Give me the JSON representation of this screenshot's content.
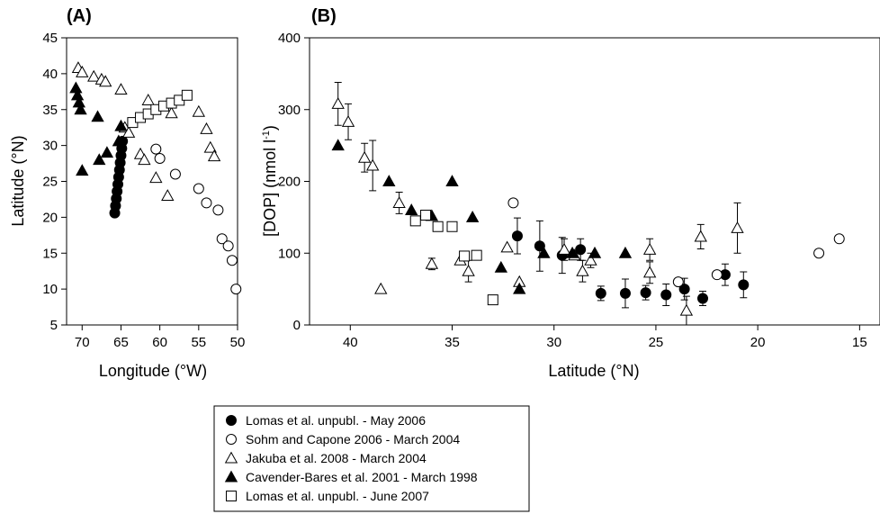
{
  "chart_data": [
    {
      "type": "scatter",
      "panel_label": "(A)",
      "xlabel": "Longitude (°W)",
      "ylabel": "Latitude (°N)",
      "xlim": [
        72,
        50
      ],
      "ylim": [
        5,
        45
      ],
      "x_ticks": [
        70,
        65,
        60,
        55,
        50
      ],
      "y_ticks": [
        5,
        10,
        15,
        20,
        25,
        30,
        35,
        40,
        45
      ],
      "reversed_x": true,
      "series": [
        {
          "key": "s1",
          "marker": "filled-circle",
          "points": [
            [
              65.8,
              20.6
            ],
            [
              65.7,
              21.6
            ],
            [
              65.6,
              22.6
            ],
            [
              65.5,
              23.6
            ],
            [
              65.4,
              24.6
            ],
            [
              65.3,
              25.6
            ],
            [
              65.2,
              26.6
            ],
            [
              65.1,
              27.6
            ],
            [
              65.0,
              28.6
            ],
            [
              64.9,
              29.6
            ],
            [
              64.8,
              30.6
            ]
          ]
        },
        {
          "key": "s2",
          "marker": "open-circle",
          "points": [
            [
              60.5,
              29.5
            ],
            [
              60.0,
              28.2
            ],
            [
              58.0,
              26.0
            ],
            [
              55.0,
              24.0
            ],
            [
              54.0,
              22.0
            ],
            [
              52.5,
              21.0
            ],
            [
              52.0,
              17.0
            ],
            [
              51.2,
              16.0
            ],
            [
              50.7,
              14.0
            ],
            [
              50.2,
              10.0
            ]
          ]
        },
        {
          "key": "s3",
          "marker": "open-triangle",
          "points": [
            [
              70.5,
              40.8
            ],
            [
              70.0,
              40.2
            ],
            [
              68.5,
              39.6
            ],
            [
              67.5,
              39.2
            ],
            [
              67.0,
              38.9
            ],
            [
              65.0,
              37.8
            ],
            [
              64.5,
              32.5
            ],
            [
              64.0,
              31.8
            ],
            [
              62.5,
              28.8
            ],
            [
              62.0,
              28.0
            ],
            [
              61.5,
              36.3
            ],
            [
              60.5,
              25.5
            ],
            [
              59.0,
              23.0
            ],
            [
              58.5,
              34.5
            ],
            [
              55.0,
              34.7
            ],
            [
              54.0,
              32.3
            ],
            [
              53.5,
              29.7
            ],
            [
              53.0,
              28.5
            ]
          ]
        },
        {
          "key": "s4",
          "marker": "filled-triangle",
          "points": [
            [
              70.8,
              38.0
            ],
            [
              70.6,
              37.0
            ],
            [
              70.4,
              36.0
            ],
            [
              70.2,
              35.0
            ],
            [
              70.0,
              26.5
            ],
            [
              68.0,
              34.0
            ],
            [
              67.8,
              28.0
            ],
            [
              66.8,
              29.0
            ],
            [
              65.0,
              32.7
            ],
            [
              65.3,
              30.6
            ]
          ]
        },
        {
          "key": "s5",
          "marker": "open-square",
          "points": [
            [
              63.5,
              33.2
            ],
            [
              62.5,
              33.9
            ],
            [
              61.5,
              34.4
            ],
            [
              60.5,
              35.0
            ],
            [
              59.5,
              35.5
            ],
            [
              58.5,
              35.9
            ],
            [
              57.5,
              36.3
            ],
            [
              56.5,
              37.0
            ]
          ]
        }
      ]
    },
    {
      "type": "scatter",
      "panel_label": "(B)",
      "xlabel": "Latitude (°N)",
      "ylabel_main": "[DOP] (nmol l",
      "ylabel_sup": "-1",
      "ylabel_end": ")",
      "xlim": [
        42,
        14
      ],
      "ylim": [
        0,
        400
      ],
      "x_ticks": [
        40,
        35,
        30,
        25,
        20,
        15
      ],
      "y_ticks": [
        0,
        100,
        200,
        300,
        400
      ],
      "reversed_x": true,
      "series": [
        {
          "key": "s1",
          "marker": "filled-circle",
          "points": [
            [
              31.8,
              124,
              25
            ],
            [
              30.7,
              110,
              35
            ],
            [
              29.6,
              97,
              25
            ],
            [
              28.7,
              105,
              15
            ],
            [
              27.7,
              44,
              10
            ],
            [
              26.5,
              44,
              20
            ],
            [
              25.5,
              45,
              10
            ],
            [
              24.5,
              42,
              15
            ],
            [
              23.6,
              50,
              15
            ],
            [
              22.7,
              37,
              10
            ],
            [
              21.6,
              70,
              15
            ],
            [
              20.7,
              56,
              18
            ]
          ]
        },
        {
          "key": "s2",
          "marker": "open-circle",
          "points": [
            [
              32.0,
              170
            ],
            [
              23.9,
              60
            ],
            [
              22.0,
              70
            ],
            [
              17.0,
              100
            ],
            [
              16.0,
              120
            ]
          ]
        },
        {
          "key": "s3",
          "marker": "open-triangle",
          "points": [
            [
              40.6,
              308,
              30
            ],
            [
              40.1,
              283,
              25
            ],
            [
              39.3,
              233,
              20
            ],
            [
              38.9,
              222,
              35
            ],
            [
              38.5,
              50,
              0
            ],
            [
              37.6,
              170,
              15
            ],
            [
              36.0,
              85,
              8
            ],
            [
              34.6,
              90,
              0
            ],
            [
              34.2,
              75,
              15
            ],
            [
              32.3,
              108,
              0
            ],
            [
              31.7,
              60,
              0
            ],
            [
              29.5,
              105,
              15
            ],
            [
              29.0,
              97,
              0
            ],
            [
              28.6,
              75,
              15
            ],
            [
              28.2,
              90,
              10
            ],
            [
              25.3,
              73,
              15
            ],
            [
              25.3,
              105,
              15
            ],
            [
              23.5,
              20,
              20
            ],
            [
              22.8,
              123,
              17
            ],
            [
              21.0,
              135,
              35
            ]
          ]
        },
        {
          "key": "s4",
          "marker": "filled-triangle",
          "points": [
            [
              40.6,
              250
            ],
            [
              38.1,
              200
            ],
            [
              37.0,
              160
            ],
            [
              36.0,
              152
            ],
            [
              35.0,
              200
            ],
            [
              34.0,
              150
            ],
            [
              32.6,
              80
            ],
            [
              31.7,
              50
            ],
            [
              30.5,
              100
            ],
            [
              29.1,
              100
            ],
            [
              28.0,
              100
            ],
            [
              26.5,
              100
            ]
          ]
        },
        {
          "key": "s5",
          "marker": "open-square",
          "points": [
            [
              36.8,
              145
            ],
            [
              36.3,
              153
            ],
            [
              35.7,
              137
            ],
            [
              35.0,
              137
            ],
            [
              34.4,
              96
            ],
            [
              33.8,
              97
            ],
            [
              33.0,
              35
            ]
          ]
        }
      ]
    }
  ],
  "legend": {
    "placement": "bottom-center",
    "entries": [
      {
        "key": "s1",
        "marker": "filled-circle",
        "label": "Lomas et al. unpubl. - May 2006"
      },
      {
        "key": "s2",
        "marker": "open-circle",
        "label": "Sohm and Capone 2006 - March 2004"
      },
      {
        "key": "s3",
        "marker": "open-triangle",
        "label": "Jakuba et al. 2008 - March 2004"
      },
      {
        "key": "s4",
        "marker": "filled-triangle",
        "label": "Cavender-Bares et al. 2001 - March 1998"
      },
      {
        "key": "s5",
        "marker": "open-square",
        "label": "Lomas et al. unpubl. - June 2007"
      }
    ]
  }
}
